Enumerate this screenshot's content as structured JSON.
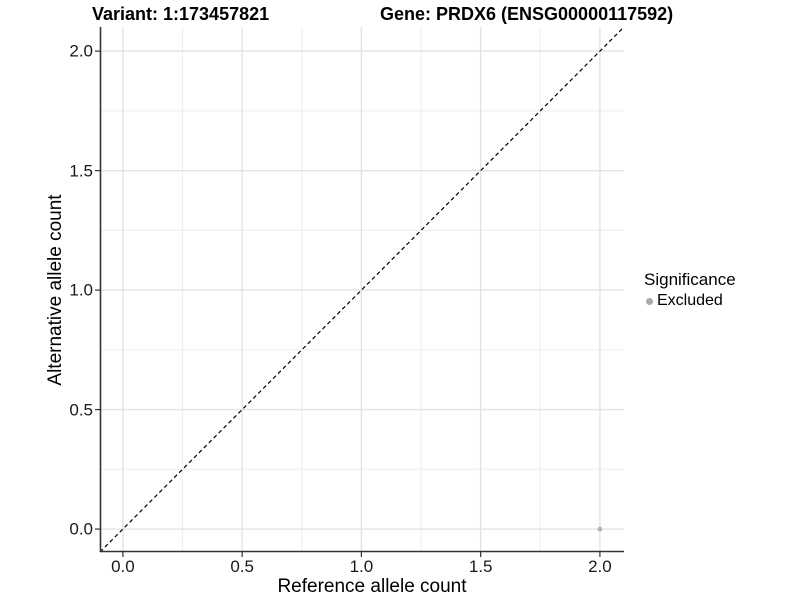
{
  "page": {
    "title_variant": "Variant: 1:173457821",
    "title_gene": "Gene: PRDX6 (ENSG00000117592)"
  },
  "chart_data": {
    "type": "scatter",
    "title": "Variant: 1:173457821    Gene: PRDX6 (ENSG00000117592)",
    "xlabel": "Reference allele count",
    "ylabel": "Alternative allele count",
    "xlim": [
      -0.096,
      2.101
    ],
    "ylim": [
      -0.096,
      2.101
    ],
    "x_ticks": [
      0.0,
      0.5,
      1.0,
      1.5,
      2.0
    ],
    "y_ticks": [
      0.0,
      0.5,
      1.0,
      1.5,
      2.0
    ],
    "x_tick_labels": [
      "0.0",
      "0.5",
      "1.0",
      "1.5",
      "2.0"
    ],
    "y_tick_labels": [
      "0.0",
      "0.5",
      "1.0",
      "1.5",
      "2.0"
    ],
    "grid": "major+minor",
    "series": [
      {
        "name": "Excluded",
        "marker": "circle",
        "color": "#b3b3b3",
        "points": [
          {
            "x": 2.0,
            "y": 0.0
          }
        ]
      }
    ],
    "reference_line": {
      "type": "identity",
      "style": "dashed",
      "color": "#000000"
    },
    "legend": {
      "title": "Significance",
      "position": "right",
      "entries": [
        {
          "label": "Excluded",
          "color": "#ababab",
          "marker": "circle"
        }
      ]
    },
    "colors": {
      "grid_major": "#e3e3e3",
      "grid_minor": "#f0f0f0",
      "axis_line": "#333333",
      "tick_mark": "#333333",
      "point": "#b3b3b3",
      "text": "#000000"
    }
  }
}
